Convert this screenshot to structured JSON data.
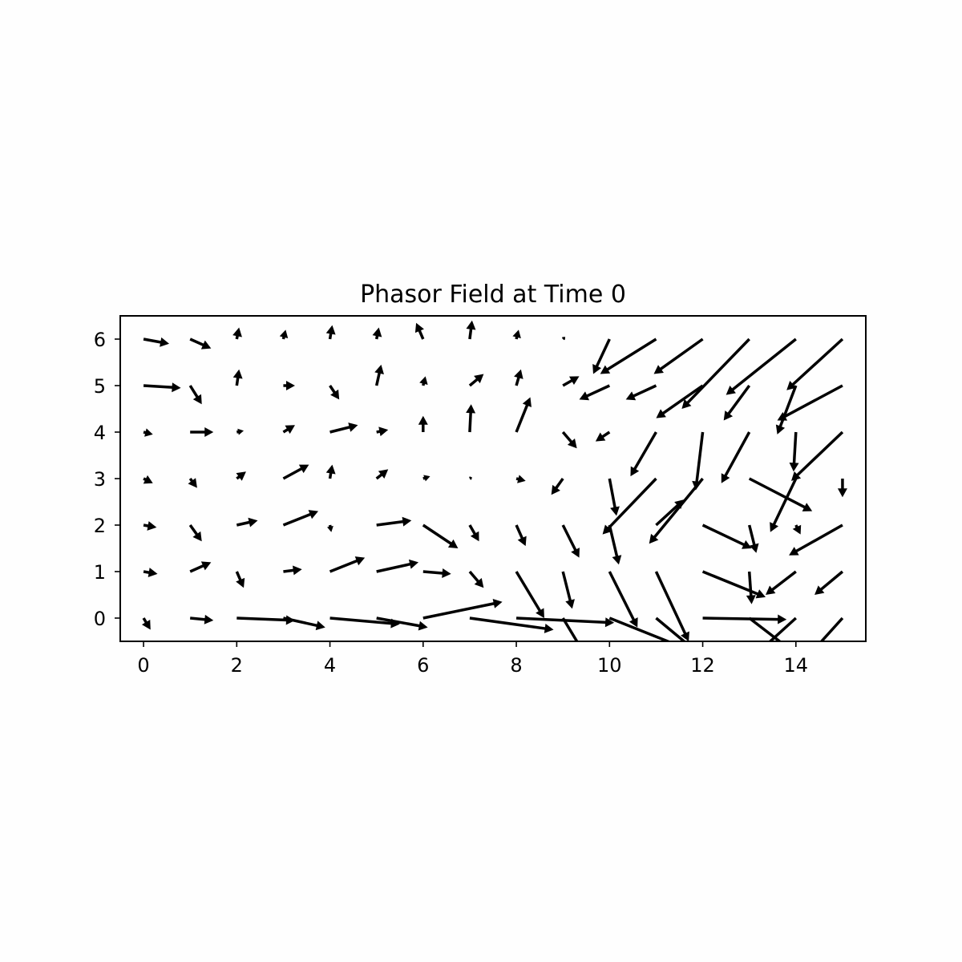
{
  "chart_data": {
    "type": "quiver",
    "title": "Phasor Field at Time 0",
    "xlabel": "",
    "ylabel": "",
    "xlim": [
      -0.5,
      15.5
    ],
    "ylim": [
      -0.5,
      6.5
    ],
    "xticks": [
      0,
      2,
      4,
      6,
      8,
      10,
      12,
      14
    ],
    "yticks": [
      0,
      1,
      2,
      3,
      4,
      5,
      6
    ],
    "grid": false,
    "arrow_color": "#000000",
    "units_note": "Each vector is [u, v] in data units, anchored at (x, y); rows are y = 0..6, columns are x = 0..15.",
    "vectors": [
      [
        [
          0.15,
          -0.25
        ],
        [
          0.5,
          -0.05
        ],
        [
          1.25,
          -0.05
        ],
        [
          0.9,
          -0.2
        ],
        [
          1.5,
          -0.13
        ],
        [
          1.1,
          -0.2
        ],
        [
          1.7,
          0.35
        ],
        [
          1.8,
          -0.25
        ],
        [
          2.1,
          -0.1
        ],
        [
          0.6,
          -1.0
        ],
        [
          2.5,
          -1.0
        ],
        [
          1.2,
          -1.0
        ],
        [
          1.8,
          -0.03
        ],
        [
          1.3,
          -1.0
        ],
        [
          -1.1,
          -1.0
        ],
        [
          -0.9,
          -1.0
        ]
      ],
      [
        [
          0.3,
          -0.05
        ],
        [
          0.45,
          0.2
        ],
        [
          0.15,
          -0.35
        ],
        [
          0.4,
          0.05
        ],
        [
          0.75,
          0.3
        ],
        [
          0.9,
          0.2
        ],
        [
          0.6,
          -0.05
        ],
        [
          0.3,
          -0.35
        ],
        [
          0.6,
          -1.0
        ],
        [
          0.2,
          -0.8
        ],
        [
          0.6,
          -1.2
        ],
        [
          0.7,
          -1.5
        ],
        [
          1.35,
          -0.55
        ],
        [
          0.05,
          -0.7
        ],
        [
          -0.65,
          -0.5
        ],
        [
          -0.6,
          -0.5
        ]
      ],
      [
        [
          0.28,
          -0.05
        ],
        [
          0.25,
          -0.35
        ],
        [
          0.45,
          0.1
        ],
        [
          0.75,
          0.3
        ],
        [
          0.03,
          -0.15
        ],
        [
          0.75,
          0.1
        ],
        [
          0.75,
          -0.5
        ],
        [
          0.2,
          -0.35
        ],
        [
          0.2,
          -0.45
        ],
        [
          0.35,
          -0.7
        ],
        [
          0.2,
          -0.85
        ],
        [
          0.6,
          0.55
        ],
        [
          1.05,
          -0.5
        ],
        [
          0.15,
          -0.6
        ],
        [
          0.1,
          -0.2
        ],
        [
          -1.15,
          -0.65
        ]
      ],
      [
        [
          0.2,
          -0.1
        ],
        [
          0.15,
          -0.2
        ],
        [
          0.2,
          0.15
        ],
        [
          0.55,
          0.3
        ],
        [
          0.05,
          0.3
        ],
        [
          0.25,
          0.2
        ],
        [
          0.15,
          0.05
        ],
        [
          0.05,
          0.03
        ],
        [
          0.2,
          -0.05
        ],
        [
          -0.25,
          -0.35
        ],
        [
          0.15,
          -0.8
        ],
        [
          -1.15,
          -1.2
        ],
        [
          -1.15,
          -1.4
        ],
        [
          1.35,
          -0.7
        ],
        [
          -0.55,
          -1.15
        ],
        [
          0.0,
          -0.4
        ]
      ],
      [
        [
          0.2,
          -0.05
        ],
        [
          0.5,
          0.0
        ],
        [
          0.15,
          0.03
        ],
        [
          0.25,
          0.15
        ],
        [
          0.6,
          0.15
        ],
        [
          0.25,
          0.05
        ],
        [
          0.0,
          0.35
        ],
        [
          0.03,
          0.6
        ],
        [
          0.3,
          0.75
        ],
        [
          0.3,
          -0.35
        ],
        [
          -0.3,
          -0.2
        ],
        [
          -0.55,
          -0.95
        ],
        [
          -0.15,
          -1.25
        ],
        [
          -0.6,
          -1.1
        ],
        [
          -0.05,
          -0.85
        ],
        [
          -1.1,
          -1.05
        ]
      ],
      [
        [
          0.8,
          -0.05
        ],
        [
          0.25,
          -0.4
        ],
        [
          0.05,
          0.35
        ],
        [
          0.25,
          0.0
        ],
        [
          0.2,
          -0.3
        ],
        [
          0.1,
          0.45
        ],
        [
          0.05,
          0.2
        ],
        [
          0.3,
          0.25
        ],
        [
          0.1,
          0.35
        ],
        [
          0.35,
          0.2
        ],
        [
          -0.65,
          -0.3
        ],
        [
          -0.65,
          -0.3
        ],
        [
          -1.0,
          -0.7
        ],
        [
          -0.55,
          -0.75
        ],
        [
          -0.4,
          -1.05
        ],
        [
          -1.4,
          -0.75
        ]
      ],
      [
        [
          0.55,
          -0.1
        ],
        [
          0.45,
          -0.2
        ],
        [
          0.05,
          0.25
        ],
        [
          0.05,
          0.2
        ],
        [
          0.05,
          0.3
        ],
        [
          0.05,
          0.25
        ],
        [
          -0.15,
          0.35
        ],
        [
          0.05,
          0.4
        ],
        [
          0.05,
          0.2
        ],
        [
          0.05,
          0.05
        ],
        [
          -0.35,
          -0.75
        ],
        [
          -1.2,
          -0.75
        ],
        [
          -1.05,
          -0.75
        ],
        [
          -1.45,
          -1.5
        ],
        [
          -1.5,
          -1.2
        ],
        [
          -1.2,
          -1.1
        ]
      ]
    ]
  }
}
